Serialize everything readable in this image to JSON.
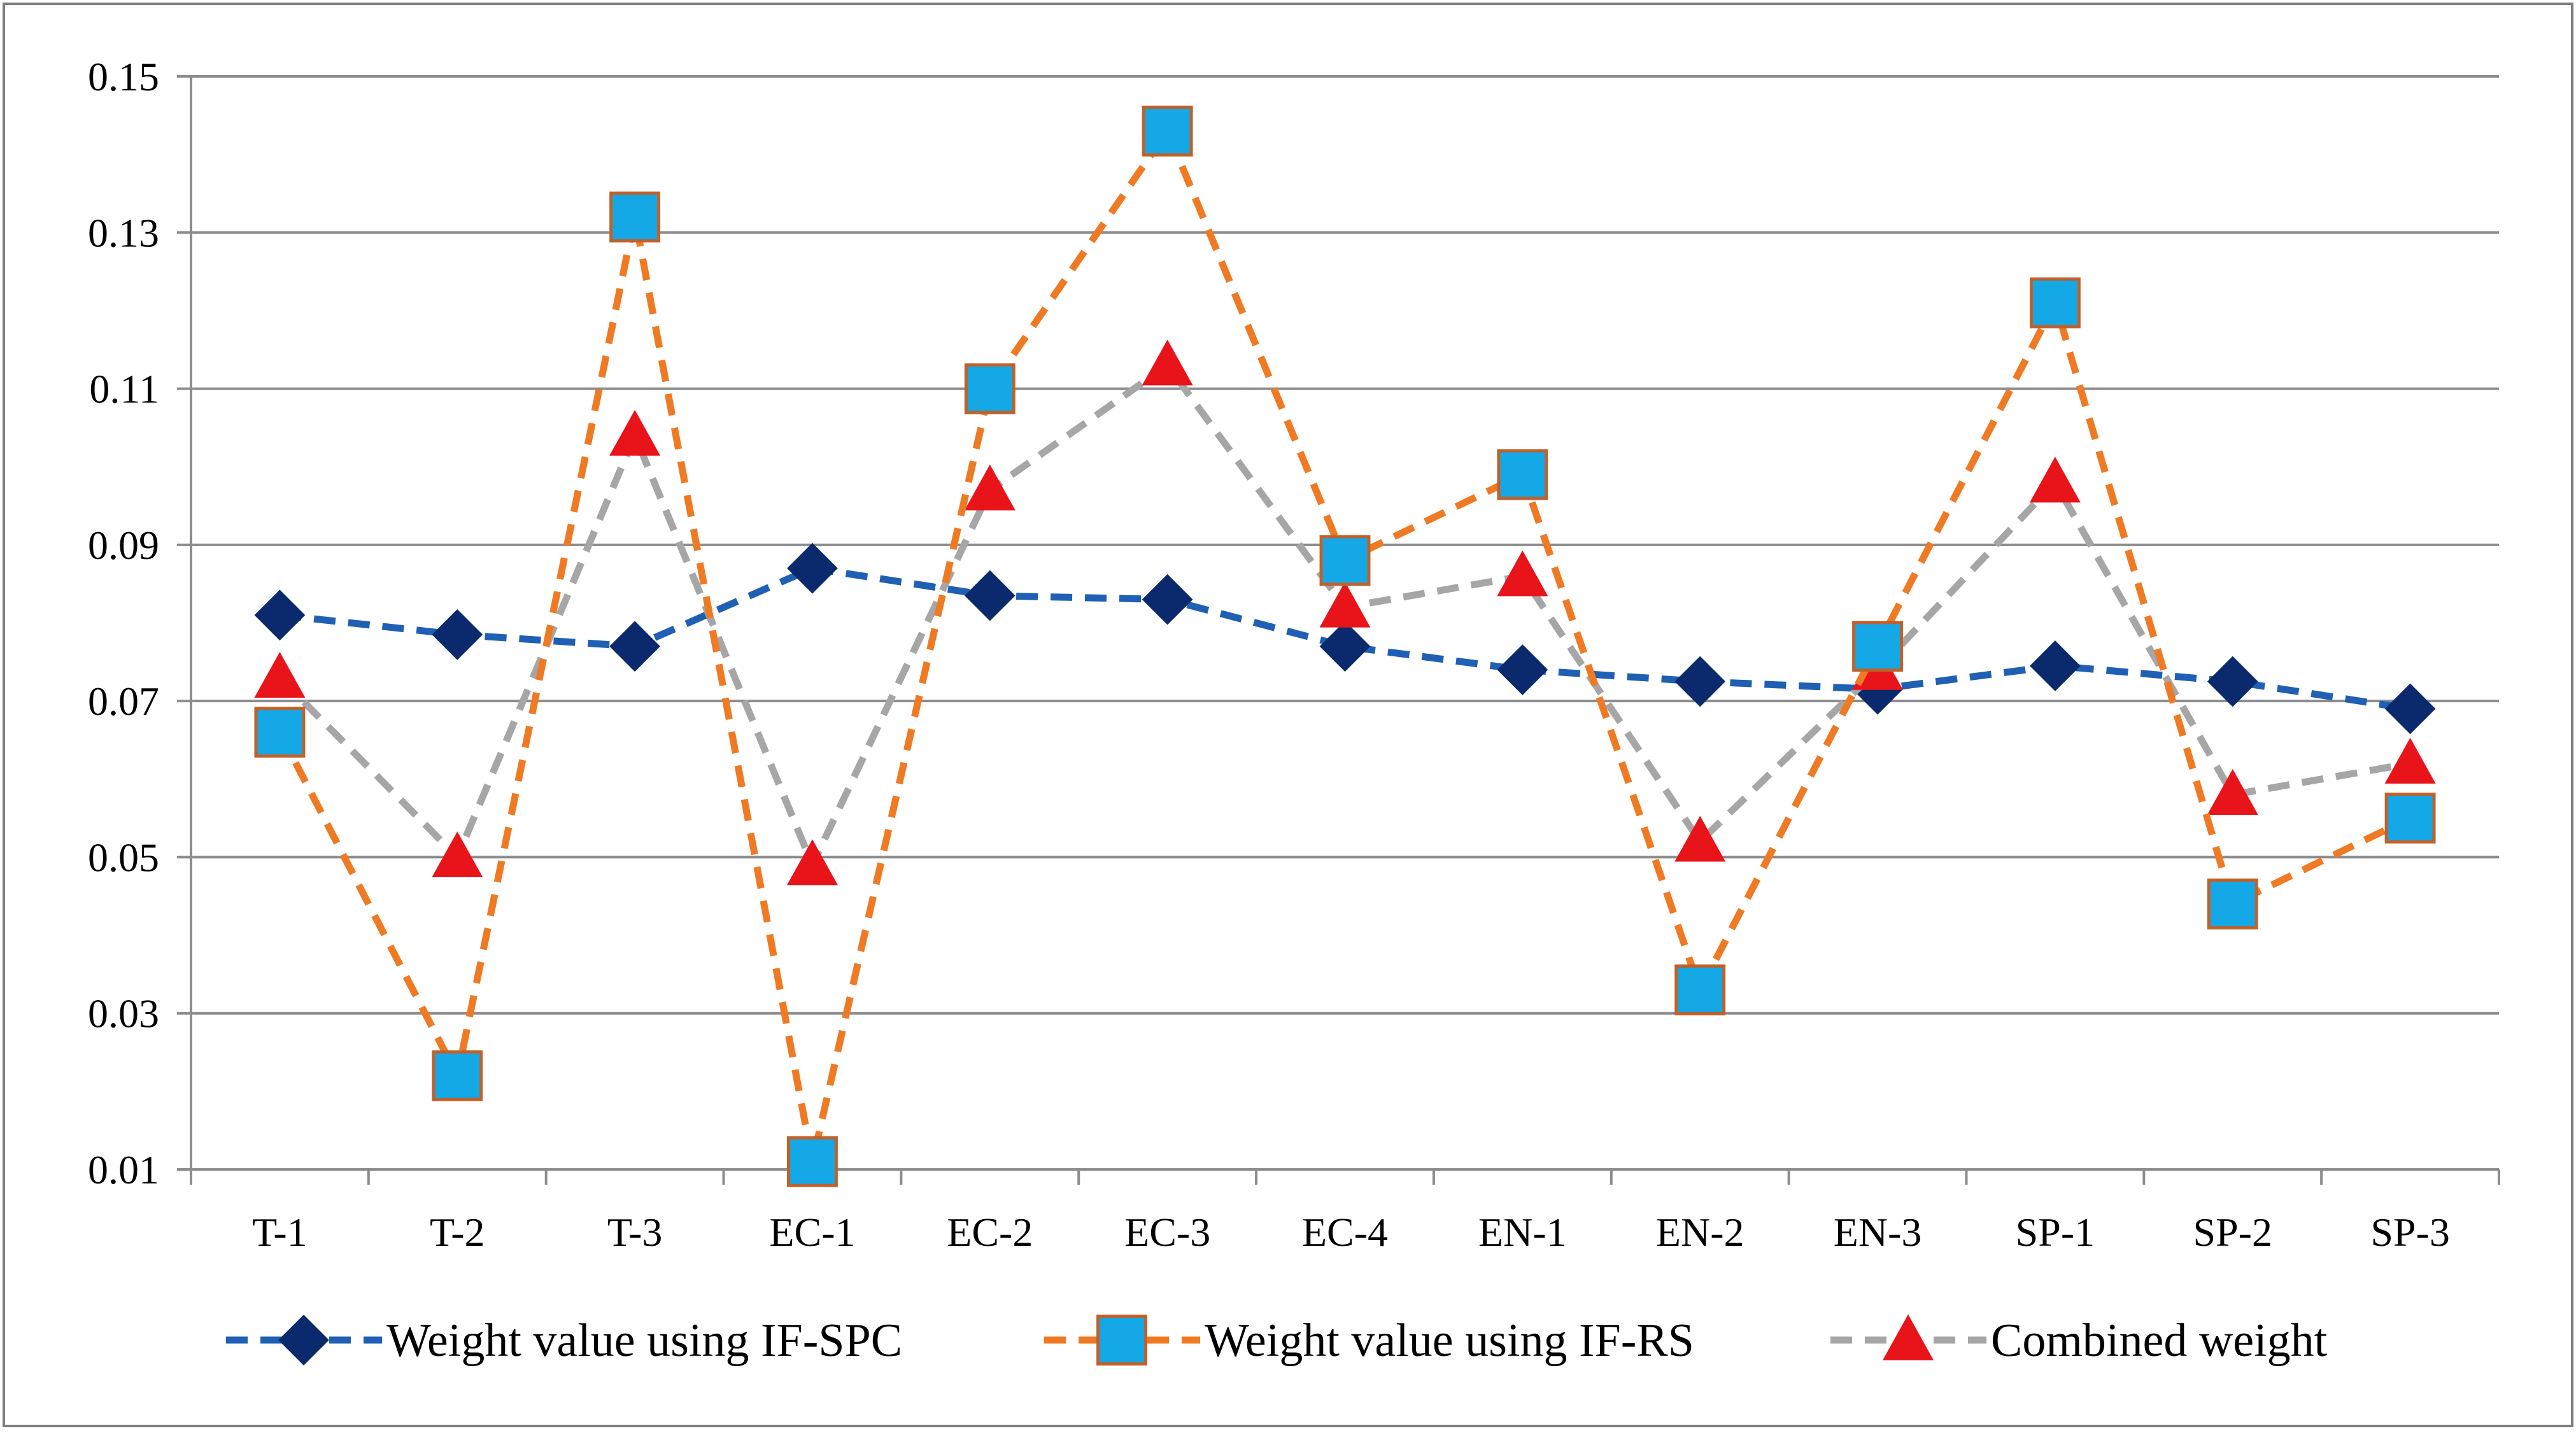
{
  "chart_data": {
    "type": "line",
    "title": "",
    "xlabel": "",
    "ylabel": "",
    "categories": [
      "T-1",
      "T-2",
      "T-3",
      "EC-1",
      "EC-2",
      "EC-3",
      "EC-4",
      "EN-1",
      "EN-2",
      "EN-3",
      "SP-1",
      "SP-2",
      "SP-3"
    ],
    "ylim": [
      0.01,
      0.15
    ],
    "yticks": [
      "0.01",
      "0.03",
      "0.05",
      "0.07",
      "0.09",
      "0.11",
      "0.13",
      "0.15"
    ],
    "grid": true,
    "legend_position": "bottom",
    "series": [
      {
        "name": "Weight value using IF-SPC",
        "color": "#1f5fb4",
        "marker": "diamond",
        "marker_color": "#0b2a6e",
        "values": [
          0.081,
          0.0785,
          0.077,
          0.087,
          0.0835,
          0.083,
          0.077,
          0.074,
          0.0725,
          0.0715,
          0.0745,
          0.0725,
          0.069
        ]
      },
      {
        "name": "Weight value using IF-RS",
        "color": "#f07a23",
        "marker": "square",
        "marker_color": "#14a8e6",
        "values": [
          0.066,
          0.022,
          0.132,
          0.011,
          0.11,
          0.143,
          0.088,
          0.099,
          0.033,
          0.077,
          0.121,
          0.044,
          0.055
        ]
      },
      {
        "name": "Combined weight",
        "color": "#a6a6a6",
        "marker": "triangle",
        "marker_color": "#e8141a",
        "values": [
          0.073,
          0.05,
          0.104,
          0.049,
          0.097,
          0.113,
          0.082,
          0.086,
          0.052,
          0.074,
          0.098,
          0.058,
          0.062
        ]
      }
    ]
  }
}
